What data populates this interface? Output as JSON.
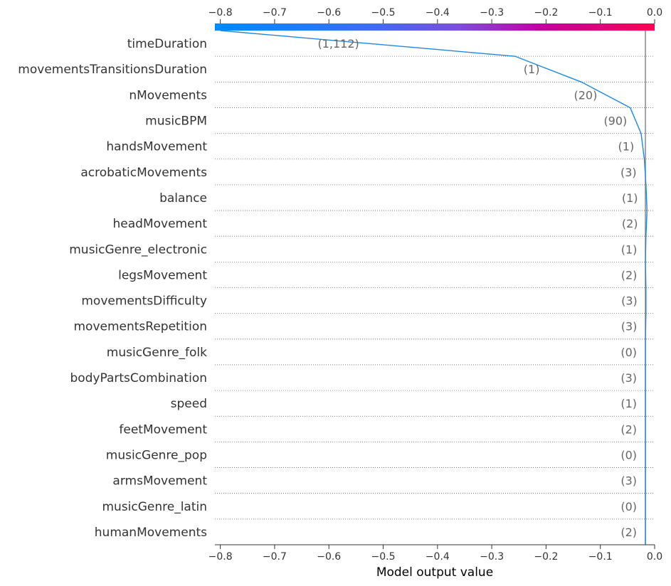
{
  "chart_data": {
    "type": "line",
    "chart_kind": "shap-decision-plot",
    "xlabel": "Model output value",
    "xlim": [
      -0.81,
      0.0
    ],
    "xticks": [
      -0.8,
      -0.7,
      -0.6,
      -0.5,
      -0.4,
      -0.3,
      -0.2,
      -0.1,
      0.0
    ],
    "xtick_labels": [
      "−0.8",
      "−0.7",
      "−0.6",
      "−0.5",
      "−0.4",
      "−0.3",
      "−0.2",
      "−0.1",
      "0.0"
    ],
    "base_value": -0.017,
    "final_value": -0.8,
    "colormap": [
      "#008bfb",
      "#7b4fd8",
      "#c3009e",
      "#ff0052"
    ],
    "line_color": "#1e88e5",
    "grid": "dotted horizontal",
    "features": [
      {
        "name": "timeDuration",
        "value_label": "(1,112)",
        "cum_output": -0.257
      },
      {
        "name": "movementsTransitionsDuration",
        "value_label": "(1)",
        "cum_output": -0.135
      },
      {
        "name": "nMovements",
        "value_label": "(20)",
        "cum_output": -0.045
      },
      {
        "name": "musicBPM",
        "value_label": "(90)",
        "cum_output": -0.025
      },
      {
        "name": "handsMovement",
        "value_label": "(1)",
        "cum_output": -0.019
      },
      {
        "name": "acrobaticMovements",
        "value_label": "(3)",
        "cum_output": -0.016
      },
      {
        "name": "balance",
        "value_label": "(1)",
        "cum_output": -0.014
      },
      {
        "name": "headMovement",
        "value_label": "(2)",
        "cum_output": -0.016
      },
      {
        "name": "musicGenre_electronic",
        "value_label": "(1)",
        "cum_output": -0.017
      },
      {
        "name": "legsMovement",
        "value_label": "(2)",
        "cum_output": -0.016
      },
      {
        "name": "movementsDifficulty",
        "value_label": "(3)",
        "cum_output": -0.016
      },
      {
        "name": "movementsRepetition",
        "value_label": "(3)",
        "cum_output": -0.017
      },
      {
        "name": "musicGenre_folk",
        "value_label": "(0)",
        "cum_output": -0.017
      },
      {
        "name": "bodyPartsCombination",
        "value_label": "(3)",
        "cum_output": -0.017
      },
      {
        "name": "speed",
        "value_label": "(1)",
        "cum_output": -0.017
      },
      {
        "name": "feetMovement",
        "value_label": "(2)",
        "cum_output": -0.017
      },
      {
        "name": "musicGenre_pop",
        "value_label": "(0)",
        "cum_output": -0.017
      },
      {
        "name": "armsMovement",
        "value_label": "(3)",
        "cum_output": -0.017
      },
      {
        "name": "musicGenre_latin",
        "value_label": "(0)",
        "cum_output": -0.017
      },
      {
        "name": "humanMovements",
        "value_label": "(2)",
        "cum_output": -0.017
      }
    ]
  }
}
